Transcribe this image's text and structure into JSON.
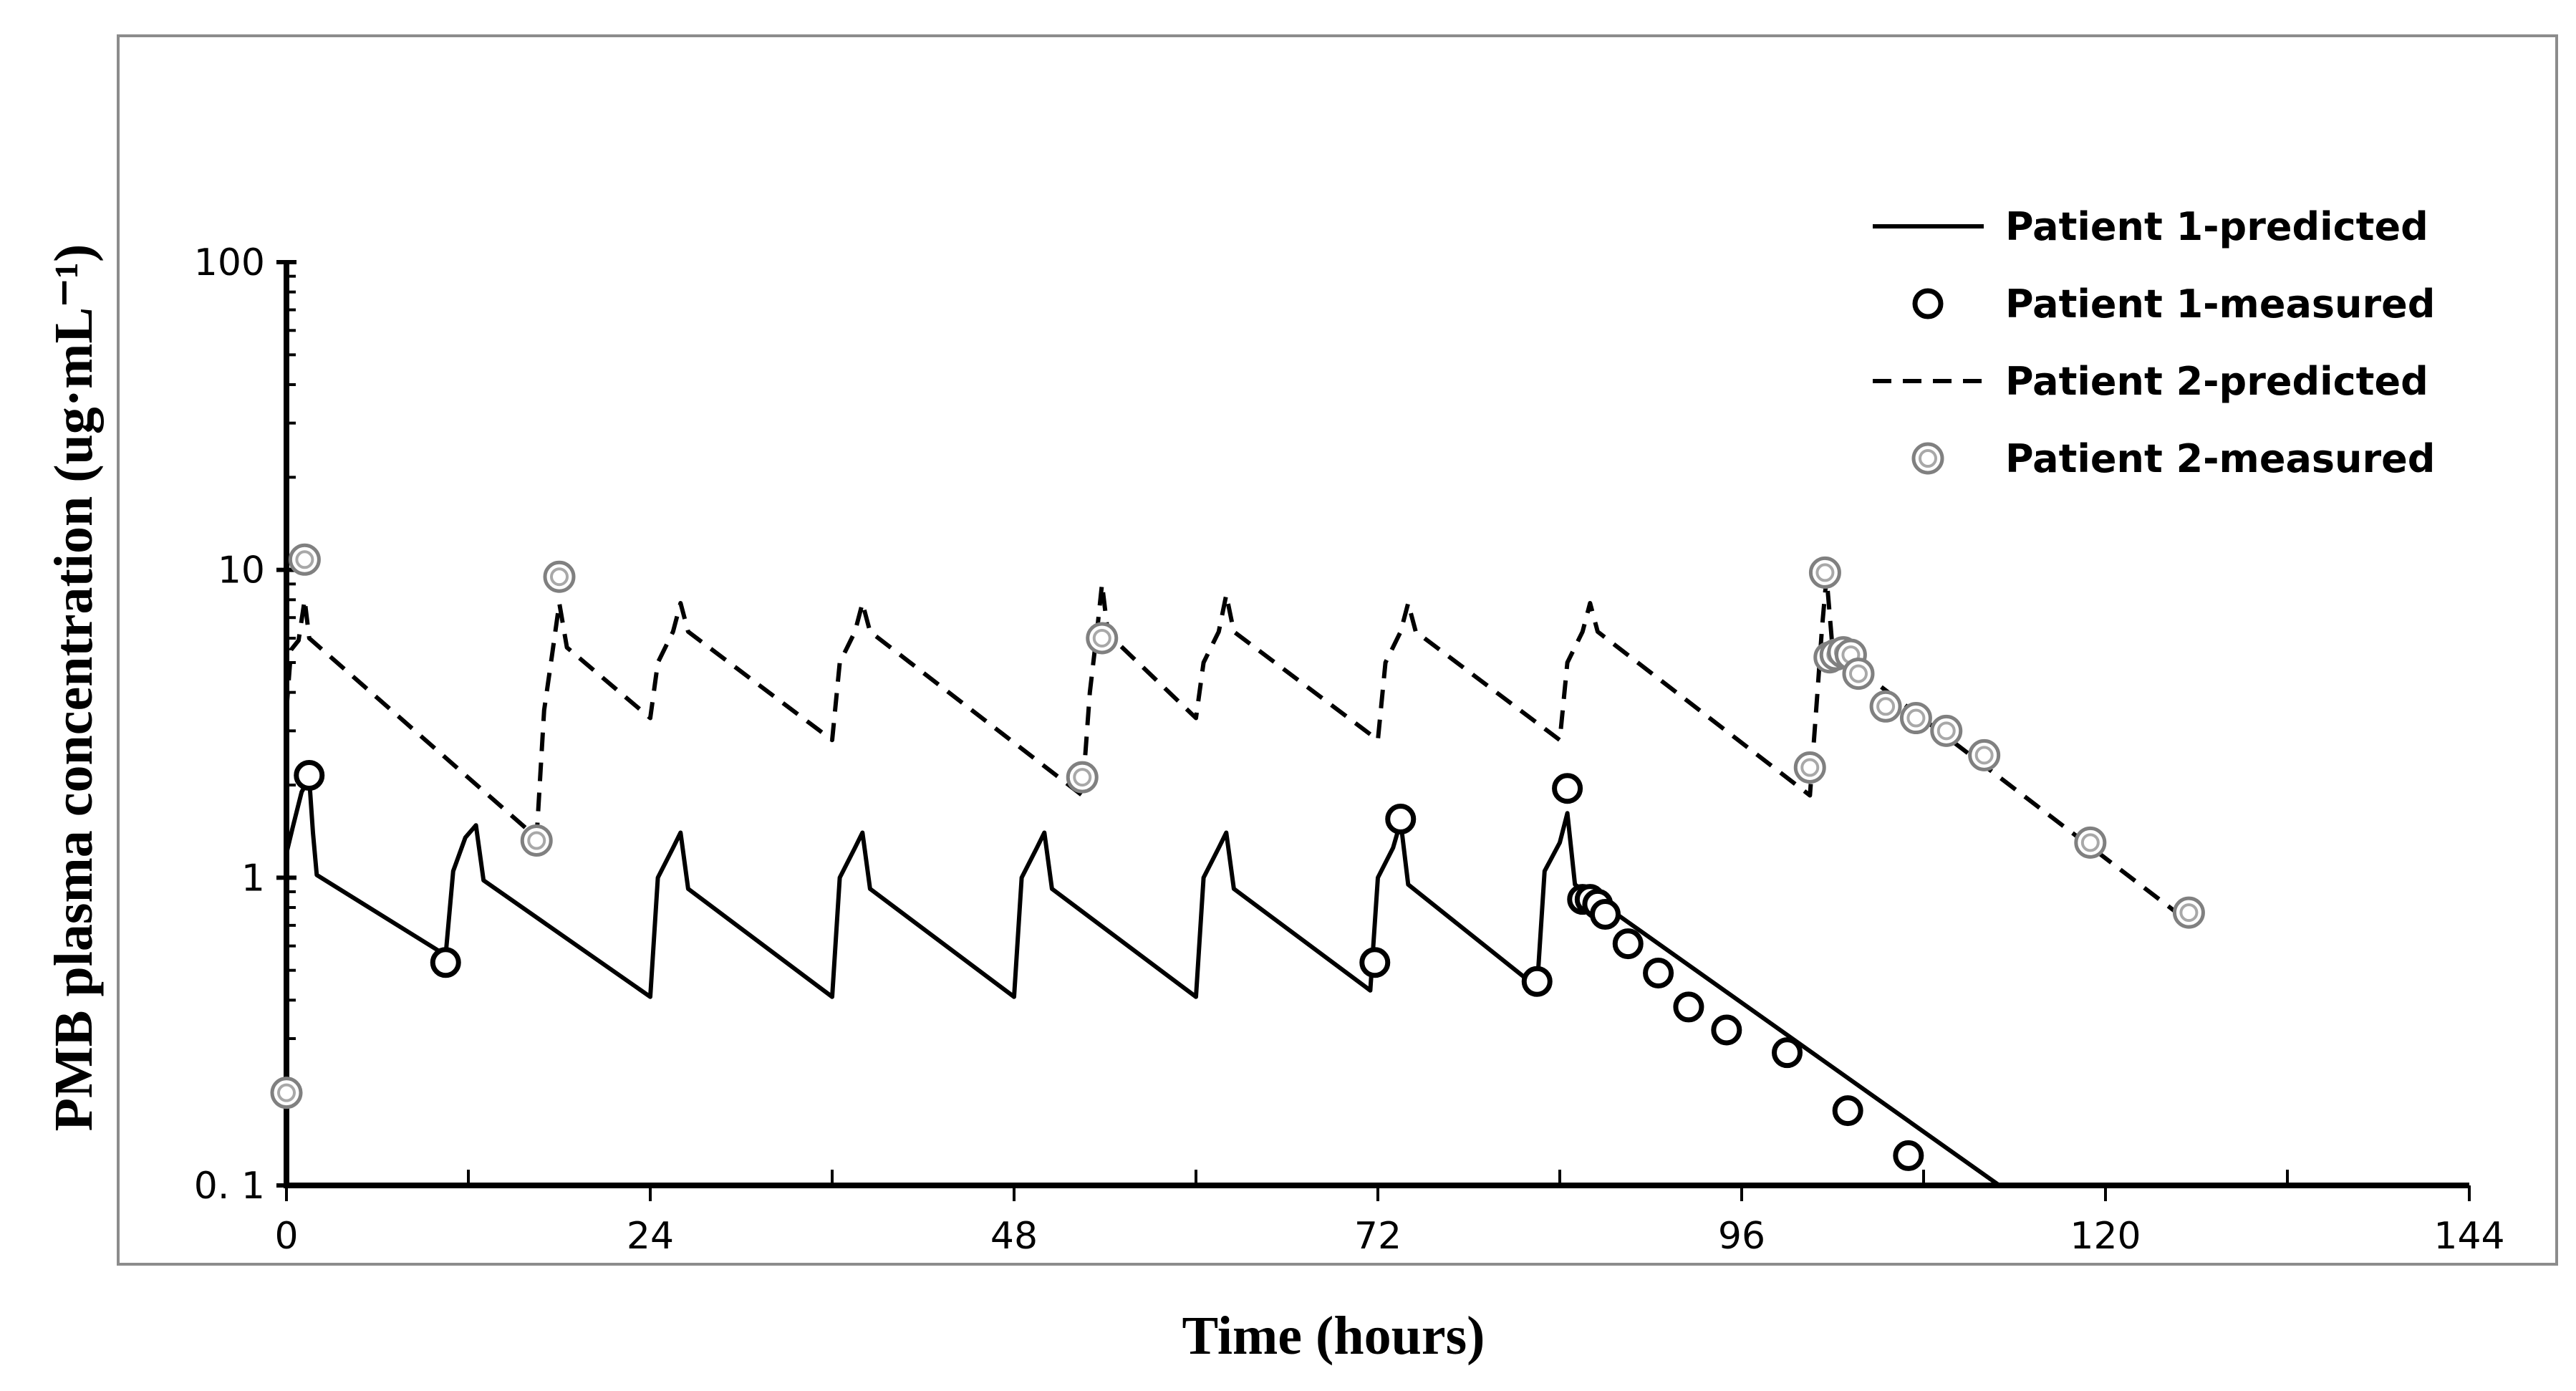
{
  "chart_data": {
    "type": "line",
    "title": "",
    "xlabel": "Time (hours)",
    "ylabel": "PMB plasma concentration (ug·mL⁻¹)",
    "xlim": [
      0,
      144
    ],
    "ylim": [
      0.1,
      100
    ],
    "yscale": "log",
    "xticks": [
      0,
      24,
      48,
      72,
      96,
      120,
      144
    ],
    "xtick_labels": [
      "0",
      "24",
      "48",
      "72",
      "96",
      "120",
      "144"
    ],
    "yticks": [
      0.1,
      1,
      10,
      100
    ],
    "ytick_labels": [
      "0. 1",
      "1",
      "10",
      "100"
    ],
    "legend_position": "top-right",
    "grid": false,
    "series": [
      {
        "name": "Patient 1-predicted",
        "kind": "line",
        "style": "solid",
        "color": "#000000",
        "points": [
          [
            0,
            1.2
          ],
          [
            0.4,
            1.45
          ],
          [
            1,
            1.9
          ],
          [
            1.5,
            2.1
          ],
          [
            1.75,
            1.4
          ],
          [
            2,
            1.02
          ],
          [
            10.5,
            0.56
          ],
          [
            11,
            1.05
          ],
          [
            11.8,
            1.35
          ],
          [
            12.5,
            1.48
          ],
          [
            13,
            0.98
          ],
          [
            24,
            0.41
          ],
          [
            24.5,
            1.0
          ],
          [
            25.5,
            1.25
          ],
          [
            26,
            1.4
          ],
          [
            26.5,
            0.92
          ],
          [
            36,
            0.41
          ],
          [
            36.5,
            1.0
          ],
          [
            37.5,
            1.25
          ],
          [
            38,
            1.4
          ],
          [
            38.5,
            0.92
          ],
          [
            48,
            0.41
          ],
          [
            48.5,
            1.0
          ],
          [
            49.5,
            1.25
          ],
          [
            50,
            1.4
          ],
          [
            50.5,
            0.92
          ],
          [
            60,
            0.41
          ],
          [
            60.5,
            1.0
          ],
          [
            61.5,
            1.25
          ],
          [
            62,
            1.4
          ],
          [
            62.5,
            0.92
          ],
          [
            71.5,
            0.43
          ],
          [
            72,
            1.0
          ],
          [
            73,
            1.25
          ],
          [
            73.5,
            1.52
          ],
          [
            74,
            0.95
          ],
          [
            82.5,
            0.44
          ],
          [
            83,
            1.05
          ],
          [
            84,
            1.3
          ],
          [
            84.5,
            1.62
          ],
          [
            85,
            0.95
          ],
          [
            113,
            0.1
          ]
        ]
      },
      {
        "name": "Patient 1-measured",
        "kind": "scatter",
        "marker": "open-circle",
        "color": "#000000",
        "points": [
          [
            1.5,
            2.15
          ],
          [
            10.5,
            0.53
          ],
          [
            71.8,
            0.53
          ],
          [
            73.5,
            1.55
          ],
          [
            82.5,
            0.46
          ],
          [
            84.5,
            1.95
          ],
          [
            85.5,
            0.85
          ],
          [
            86,
            0.85
          ],
          [
            86.5,
            0.82
          ],
          [
            87,
            0.76
          ],
          [
            88.5,
            0.61
          ],
          [
            90.5,
            0.49
          ],
          [
            92.5,
            0.38
          ],
          [
            95,
            0.32
          ],
          [
            99,
            0.27
          ],
          [
            103,
            0.175
          ],
          [
            107,
            0.125
          ]
        ]
      },
      {
        "name": "Patient 2-predicted",
        "kind": "line",
        "style": "dashed",
        "color": "#000000",
        "points": [
          [
            0,
            3.5
          ],
          [
            0.3,
            5.5
          ],
          [
            0.8,
            5.9
          ],
          [
            1.2,
            8.0
          ],
          [
            1.5,
            6.0
          ],
          [
            16.5,
            1.35
          ],
          [
            17,
            3.5
          ],
          [
            17.5,
            5.2
          ],
          [
            18,
            7.8
          ],
          [
            18.5,
            5.6
          ],
          [
            24,
            3.3
          ],
          [
            24.5,
            5.0
          ],
          [
            25.5,
            6.3
          ],
          [
            26,
            7.8
          ],
          [
            26.5,
            6.3
          ],
          [
            36,
            2.8
          ],
          [
            36.5,
            5.0
          ],
          [
            37.5,
            6.3
          ],
          [
            38,
            7.8
          ],
          [
            38.5,
            6.3
          ],
          [
            52.5,
            1.85
          ],
          [
            53,
            4.0
          ],
          [
            53.5,
            6.5
          ],
          [
            53.8,
            9.0
          ],
          [
            54.2,
            6.2
          ],
          [
            60,
            3.3
          ],
          [
            60.5,
            5.0
          ],
          [
            61.5,
            6.3
          ],
          [
            62,
            8.3
          ],
          [
            62.5,
            6.3
          ],
          [
            72,
            2.8
          ],
          [
            72.5,
            5.0
          ],
          [
            73.5,
            6.3
          ],
          [
            74,
            7.8
          ],
          [
            74.5,
            6.3
          ],
          [
            84,
            2.8
          ],
          [
            84.5,
            5.0
          ],
          [
            85.5,
            6.3
          ],
          [
            86,
            7.8
          ],
          [
            86.5,
            6.3
          ],
          [
            100.5,
            1.85
          ],
          [
            101,
            4.0
          ],
          [
            101.3,
            6.5
          ],
          [
            101.6,
            9.5
          ],
          [
            102,
            5.5
          ],
          [
            125,
            0.75
          ]
        ]
      },
      {
        "name": "Patient 2-measured",
        "kind": "scatter",
        "marker": "double-circle",
        "color": "#808080",
        "points": [
          [
            0,
            0.2
          ],
          [
            1.2,
            10.8
          ],
          [
            16.5,
            1.32
          ],
          [
            18,
            9.5
          ],
          [
            52.5,
            2.12
          ],
          [
            53.8,
            6.0
          ],
          [
            100.5,
            2.28
          ],
          [
            101.5,
            9.8
          ],
          [
            101.8,
            5.2
          ],
          [
            102.2,
            5.3
          ],
          [
            102.7,
            5.4
          ],
          [
            103.2,
            5.3
          ],
          [
            103.7,
            4.6
          ],
          [
            105.5,
            3.6
          ],
          [
            107.5,
            3.3
          ],
          [
            109.5,
            3.0
          ],
          [
            112,
            2.5
          ],
          [
            119,
            1.3
          ],
          [
            125.5,
            0.77
          ]
        ]
      }
    ]
  }
}
